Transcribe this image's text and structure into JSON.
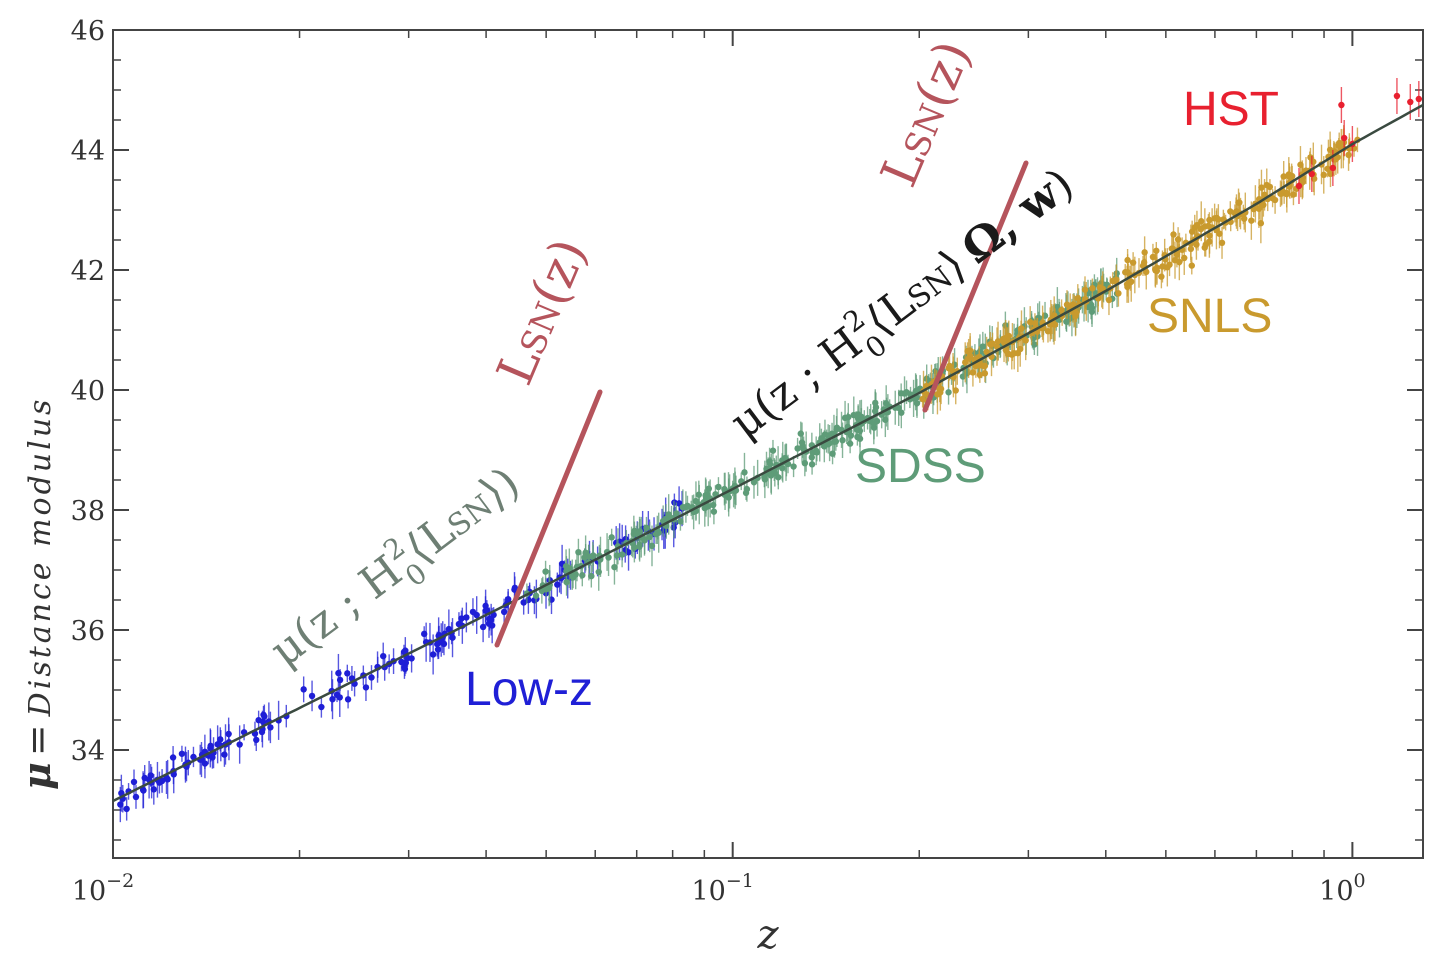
{
  "chart_data": {
    "type": "scatter",
    "title": "",
    "xlabel": "z",
    "ylabel_symbol": "μ",
    "ylabel_eq": "=",
    "ylabel_text": "Distance modulus",
    "x_scale": "log",
    "xlim": [
      0.01,
      1.3
    ],
    "ylim": [
      32.2,
      46
    ],
    "x_ticks": [
      0.01,
      0.1,
      1
    ],
    "x_tick_labels": [
      {
        "base": "10",
        "exp": "−2"
      },
      {
        "base": "10",
        "exp": "−1"
      },
      {
        "base": "10",
        "exp": "0"
      }
    ],
    "y_ticks": [
      34,
      36,
      38,
      40,
      42,
      44,
      46
    ],
    "y_tick_labels": [
      "34",
      "36",
      "38",
      "40",
      "42",
      "44",
      "46"
    ],
    "grid": false,
    "fit_line": {
      "x": [
        0.01,
        0.02,
        0.05,
        0.1,
        0.2,
        0.4,
        0.7,
        1.0,
        1.3
      ],
      "y": [
        33.15,
        34.7,
        36.75,
        38.35,
        39.95,
        41.65,
        43.1,
        44.1,
        44.75
      ]
    },
    "series": [
      {
        "name": "Low-z",
        "color": "#1f1fd6",
        "x_range": [
          0.0102,
          0.085
        ],
        "count": 170,
        "sigma": 0.2
      },
      {
        "name": "SDSS",
        "color": "#5e9c78",
        "x_range": [
          0.046,
          0.42
        ],
        "count": 320,
        "sigma": 0.2
      },
      {
        "name": "SNLS",
        "color": "#c99a2e",
        "x_range": [
          0.2,
          1.02
        ],
        "count": 260,
        "sigma": 0.22
      },
      {
        "name": "HST",
        "color": "#e8202f",
        "points": [
          [
            0.82,
            43.4
          ],
          [
            0.86,
            43.6
          ],
          [
            0.93,
            43.7
          ],
          [
            0.97,
            44.2
          ],
          [
            1.0,
            44.1
          ],
          [
            1.18,
            44.9
          ],
          [
            1.24,
            44.8
          ],
          [
            1.28,
            44.85
          ],
          [
            0.96,
            44.75
          ]
        ]
      }
    ],
    "legend_labels": [
      {
        "text": "Low-z",
        "color": "#1f1fd6"
      },
      {
        "text": "SDSS",
        "color": "#5e9c78"
      },
      {
        "text": "SNLS",
        "color": "#c99a2e"
      },
      {
        "text": "HST",
        "color": "#e8202f"
      }
    ],
    "annotations": {
      "lsn_label": "L",
      "lsn_sub": "SN",
      "lsn_arg": "(z)",
      "mu1_prefix": "μ(z ; H",
      "mu1_sup": "2",
      "mu1_sub": "0",
      "mu1_inner": "⟨L",
      "mu1_inner_sub": "SN",
      "mu1_suffix": "⟩)",
      "mu2_prefix": "μ(z ; H",
      "mu2_sup": "2",
      "mu2_sub": "0",
      "mu2_inner": "⟨L",
      "mu2_inner_sub": "SN",
      "mu2_mid": "⟩",
      "mu2_bold": "Ω,  w",
      "mu2_suffix": ")",
      "lsn_color": "#b5545c",
      "mu1_color": "#6e7f74",
      "mu2_color": "#1a1a1a"
    }
  }
}
